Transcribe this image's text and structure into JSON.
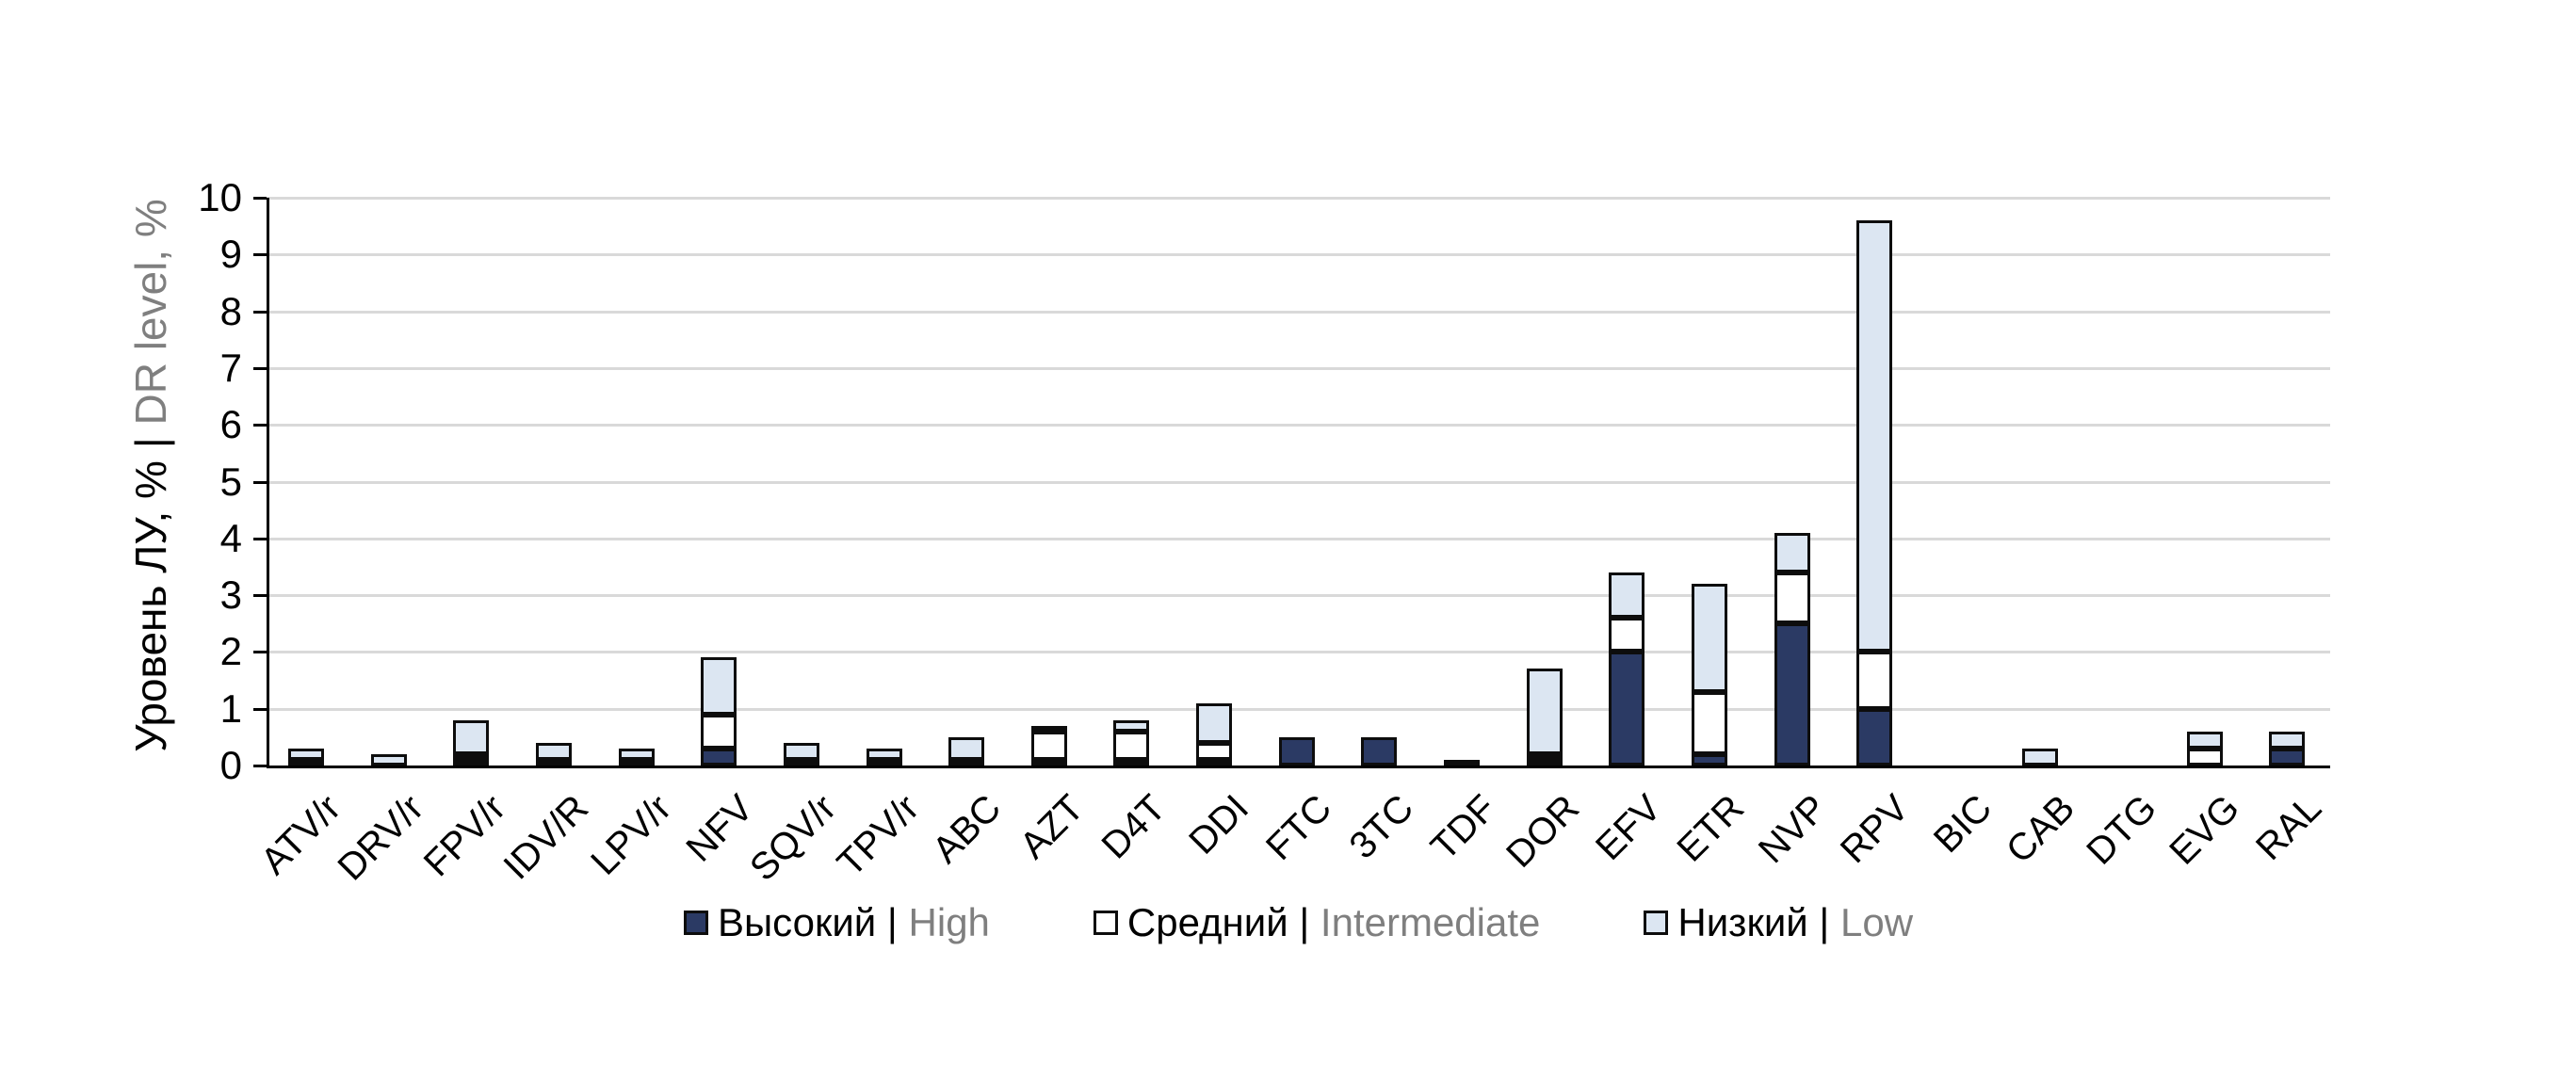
{
  "chart_data": {
    "type": "bar",
    "stacked": true,
    "title": "",
    "ylabel_ru": "Уровень ЛУ, % |",
    "ylabel_en": "DR level, %",
    "xlabel": "",
    "ylim": [
      0,
      10
    ],
    "yticks": [
      0,
      1,
      2,
      3,
      4,
      5,
      6,
      7,
      8,
      9,
      10
    ],
    "grid": "horizontal",
    "legend_position": "bottom-center",
    "categories": [
      "ATV/r",
      "DRV/r",
      "FPV/r",
      "IDV/R",
      "LPV/r",
      "NFV",
      "SQV/r",
      "TPV/r",
      "ABC",
      "AZT",
      "D4T",
      "DDI",
      "FTC",
      "3TC",
      "TDF",
      "DOR",
      "EFV",
      "ETR",
      "NVP",
      "RPV",
      "BIC",
      "CAB",
      "DTG",
      "EVG",
      "RAL"
    ],
    "series": [
      {
        "key": "high",
        "name_ru": "Высокий |",
        "name_en": "High",
        "color": "#2b3a64",
        "values": [
          0.1,
          0,
          0.1,
          0.1,
          0,
          0.3,
          0.1,
          0,
          0.1,
          0.1,
          0.1,
          0.1,
          0.5,
          0.5,
          0.1,
          0.1,
          2.0,
          0.2,
          2.5,
          1.0,
          0,
          0,
          0,
          0,
          0.3
        ]
      },
      {
        "key": "intermediate",
        "name_ru": "Средний |",
        "name_en": "Intermediate",
        "color": "#ffffff",
        "values": [
          0,
          0,
          0.1,
          0,
          0.1,
          0.6,
          0,
          0.1,
          0,
          0.5,
          0.5,
          0.3,
          0,
          0,
          0,
          0.1,
          0.6,
          1.1,
          0.9,
          1.0,
          0,
          0,
          0,
          0.3,
          0
        ]
      },
      {
        "key": "low",
        "name_ru": "Низкий |",
        "name_en": "Low",
        "color": "#dce6f2",
        "values": [
          0.2,
          0.2,
          0.6,
          0.3,
          0.2,
          1.0,
          0.3,
          0.2,
          0.4,
          0.1,
          0.2,
          0.7,
          0,
          0,
          0,
          1.5,
          0.8,
          1.9,
          0.7,
          7.6,
          0,
          0.3,
          0,
          0.3,
          0.3
        ]
      }
    ]
  },
  "colors": {
    "grid": "#d9d9d9",
    "axis": "#000000",
    "bar_border": "#0d0d0d",
    "secondary_text": "#7f7f7f"
  }
}
